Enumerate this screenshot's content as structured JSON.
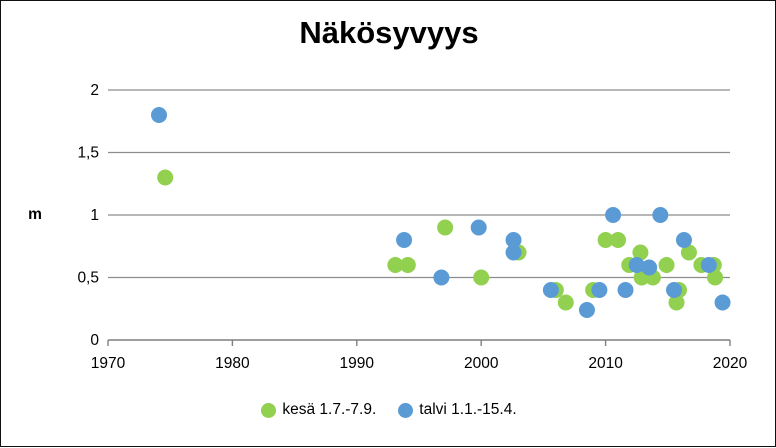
{
  "chart_data": {
    "type": "scatter",
    "title": "Näkösyvyys",
    "xlabel": "",
    "ylabel": "m",
    "xlim": [
      1970,
      2020
    ],
    "ylim": [
      0,
      2
    ],
    "x_ticks": [
      "1970",
      "1980",
      "1990",
      "2000",
      "2010",
      "2020"
    ],
    "y_ticks": [
      "0",
      "0,5",
      "1",
      "1,5",
      "2"
    ],
    "grid": "horizontal",
    "legend_position": "bottom",
    "series": [
      {
        "name": "kesä 1.7.-7.9.",
        "color": "#92d050",
        "points": [
          {
            "x": 1974.6,
            "y": 1.3
          },
          {
            "x": 1993.1,
            "y": 0.6
          },
          {
            "x": 1994.1,
            "y": 0.6
          },
          {
            "x": 1997.1,
            "y": 0.9
          },
          {
            "x": 2000.0,
            "y": 0.5
          },
          {
            "x": 2003.0,
            "y": 0.7
          },
          {
            "x": 2006.0,
            "y": 0.4
          },
          {
            "x": 2006.8,
            "y": 0.3
          },
          {
            "x": 2009.0,
            "y": 0.4
          },
          {
            "x": 2010.0,
            "y": 0.8
          },
          {
            "x": 2011.0,
            "y": 0.8
          },
          {
            "x": 2011.9,
            "y": 0.6
          },
          {
            "x": 2012.8,
            "y": 0.7
          },
          {
            "x": 2012.9,
            "y": 0.5
          },
          {
            "x": 2013.8,
            "y": 0.5
          },
          {
            "x": 2014.9,
            "y": 0.6
          },
          {
            "x": 2015.7,
            "y": 0.3
          },
          {
            "x": 2015.9,
            "y": 0.4
          },
          {
            "x": 2016.7,
            "y": 0.7
          },
          {
            "x": 2017.7,
            "y": 0.6
          },
          {
            "x": 2018.7,
            "y": 0.6
          },
          {
            "x": 2018.8,
            "y": 0.5
          }
        ]
      },
      {
        "name": "talvi 1.1.-15.4.",
        "color": "#5b9bd5",
        "points": [
          {
            "x": 1974.1,
            "y": 1.8
          },
          {
            "x": 1993.8,
            "y": 0.8
          },
          {
            "x": 1996.8,
            "y": 0.5
          },
          {
            "x": 1999.8,
            "y": 0.9
          },
          {
            "x": 2002.6,
            "y": 0.8
          },
          {
            "x": 2002.6,
            "y": 0.7
          },
          {
            "x": 2005.6,
            "y": 0.4
          },
          {
            "x": 2008.5,
            "y": 0.24
          },
          {
            "x": 2009.5,
            "y": 0.4
          },
          {
            "x": 2010.6,
            "y": 1.0
          },
          {
            "x": 2011.6,
            "y": 0.4
          },
          {
            "x": 2012.5,
            "y": 0.6
          },
          {
            "x": 2013.5,
            "y": 0.58
          },
          {
            "x": 2014.4,
            "y": 1.0
          },
          {
            "x": 2015.5,
            "y": 0.4
          },
          {
            "x": 2016.3,
            "y": 0.8
          },
          {
            "x": 2018.3,
            "y": 0.6
          },
          {
            "x": 2019.4,
            "y": 0.3
          }
        ]
      }
    ]
  }
}
